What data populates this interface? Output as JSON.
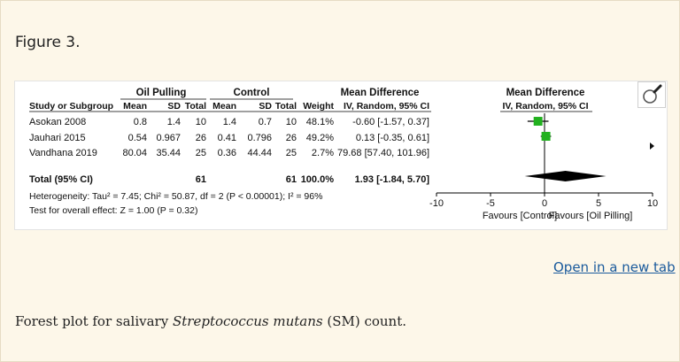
{
  "figure_label": "Figure 3.",
  "open_link": "Open in a new tab",
  "caption": {
    "before": "Forest plot for salivary ",
    "species": "Streptococcus mutans",
    "after": " (SM) count."
  },
  "colors": {
    "marker": "#22b11f",
    "summary": "#000000",
    "link": "#1a5a9c"
  },
  "icons": {
    "zoom": "magnifier-icon",
    "next": "arrow-right-icon"
  },
  "chart_data": {
    "type": "forest",
    "group_headers": {
      "oil": "Oil Pulling",
      "control": "Control",
      "md": "Mean Difference",
      "plot": "Mean Difference"
    },
    "columns": [
      "Study or Subgroup",
      "Mean",
      "SD",
      "Total",
      "Mean",
      "SD",
      "Total",
      "Weight",
      "IV, Random, 95% CI"
    ],
    "plot_subheader": "IV, Random, 95% CI",
    "studies": [
      {
        "name": "Asokan 2008",
        "oil_mean": "0.8",
        "oil_sd": "1.4",
        "oil_total": "10",
        "ctl_mean": "1.4",
        "ctl_sd": "0.7",
        "ctl_total": "10",
        "weight": "48.1%",
        "ci_text": "-0.60 [-1.57, 0.37]",
        "md": -0.6,
        "lo": -1.57,
        "hi": 0.37,
        "w": 48.1
      },
      {
        "name": "Jauhari 2015",
        "oil_mean": "0.54",
        "oil_sd": "0.967",
        "oil_total": "26",
        "ctl_mean": "0.41",
        "ctl_sd": "0.796",
        "ctl_total": "26",
        "weight": "49.2%",
        "ci_text": "0.13 [-0.35, 0.61]",
        "md": 0.13,
        "lo": -0.35,
        "hi": 0.61,
        "w": 49.2
      },
      {
        "name": "Vandhana 2019",
        "oil_mean": "80.04",
        "oil_sd": "35.44",
        "oil_total": "25",
        "ctl_mean": "0.36",
        "ctl_sd": "44.44",
        "ctl_total": "25",
        "weight": "2.7%",
        "ci_text": "79.68 [57.40, 101.96]",
        "md": 79.68,
        "lo": 57.4,
        "hi": 101.96,
        "w": 2.7
      }
    ],
    "total": {
      "name": "Total (95% CI)",
      "oil_total": "61",
      "ctl_total": "61",
      "weight": "100.0%",
      "ci_text": "1.93 [-1.84, 5.70]",
      "md": 1.93,
      "lo": -1.84,
      "hi": 5.7
    },
    "heterogeneity": "Heterogeneity: Tau² = 7.45; Chi² = 50.87, df = 2 (P < 0.00001); I² = 96%",
    "overall_effect": "Test for overall effect: Z = 1.00 (P = 0.32)",
    "xlim": [
      -10,
      10
    ],
    "ticks": [
      "-10",
      "-5",
      "0",
      "5",
      "10"
    ],
    "tick_values": [
      -10,
      -5,
      0,
      5,
      10
    ],
    "favours_left": "Favours [Control]",
    "favours_right": "Favours [Oil Pilling]"
  }
}
